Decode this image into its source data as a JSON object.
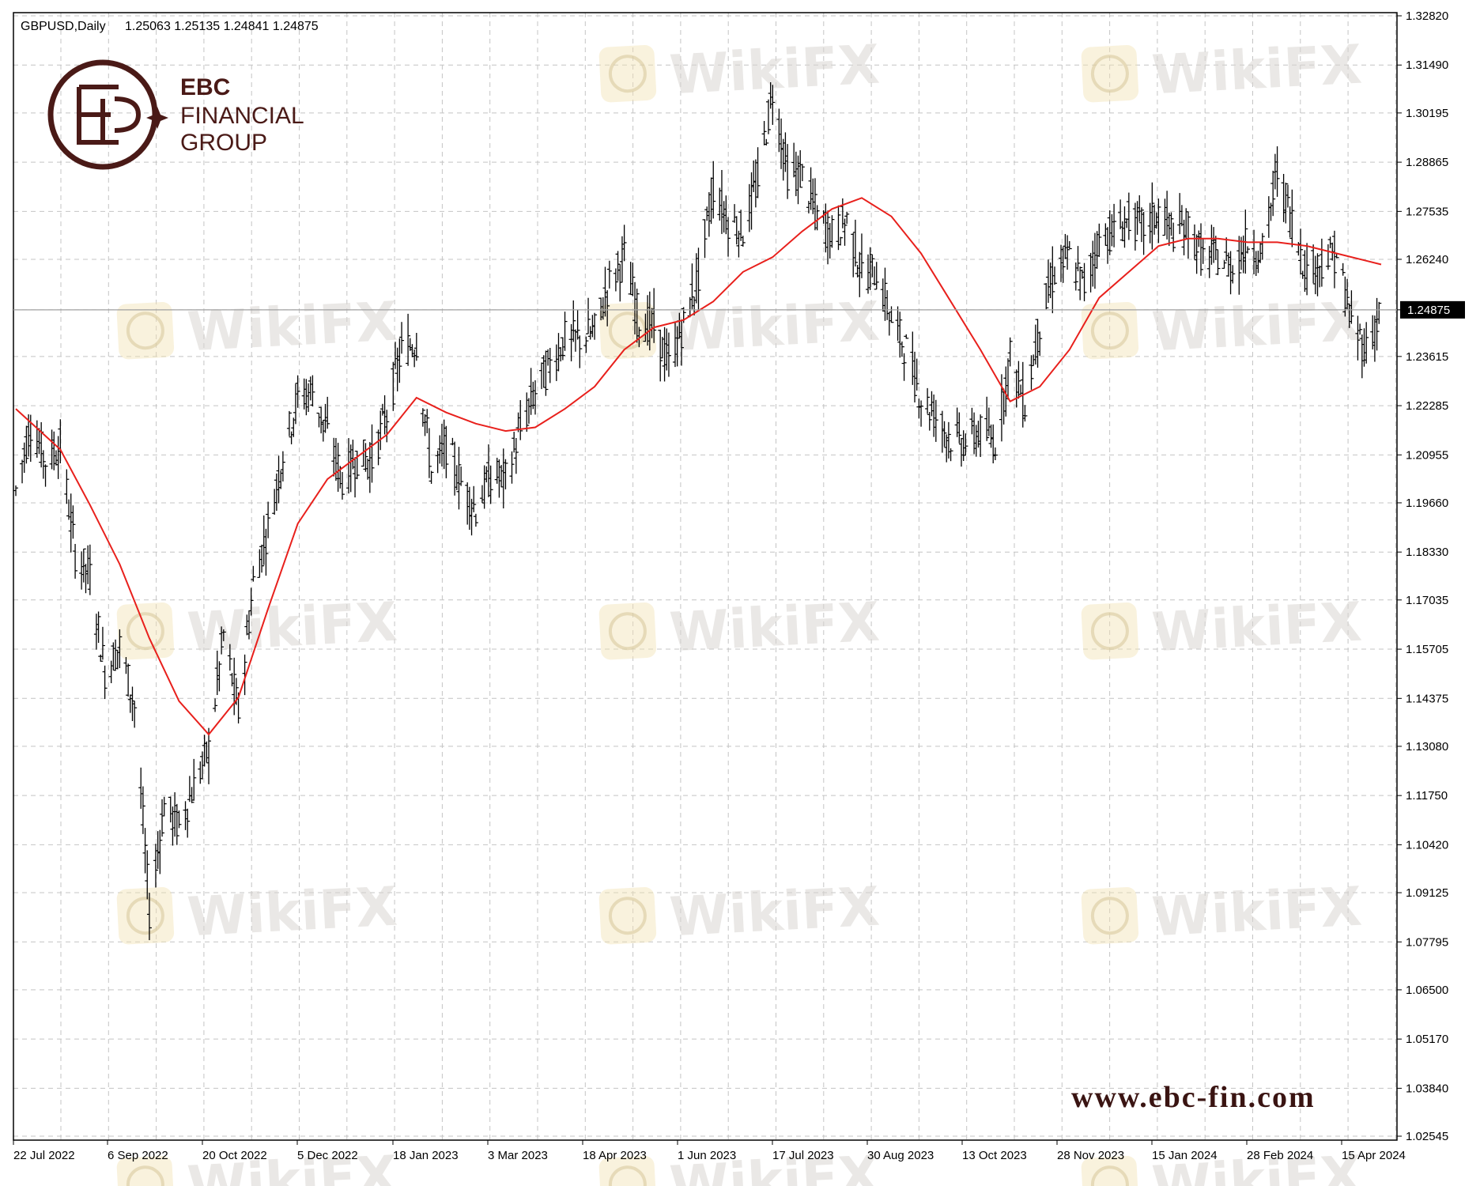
{
  "header": {
    "symbol_timeframe": "GBPUSD,Daily",
    "ohlc": "1.25063 1.25135 1.24841 1.24875"
  },
  "brand": {
    "line1": "EBC",
    "line2": "FINANCIAL",
    "line3": "GROUP",
    "website": "www.ebc-fin.com"
  },
  "watermark": {
    "text": "WikiFX"
  },
  "colors": {
    "background": "#ffffff",
    "bars": "#000000",
    "moving_average": "#e8201c",
    "grid": "#c0c0c0",
    "brand": "#4a1a17",
    "watermark": "#d9d6d2"
  },
  "chart_data": {
    "type": "line",
    "title": "GBPUSD,Daily",
    "symbol": "GBPUSD",
    "timeframe": "Daily",
    "last_price": 1.24875,
    "last_price_label": "1.24875",
    "y_tick_labels": [
      "1.32820",
      "1.31490",
      "1.30195",
      "1.28865",
      "1.27535",
      "1.26240",
      "1.24875",
      "1.23615",
      "1.22285",
      "1.20955",
      "1.19660",
      "1.18330",
      "1.17035",
      "1.15705",
      "1.14375",
      "1.13080",
      "1.11750",
      "1.10420",
      "1.09125",
      "1.07795",
      "1.06500",
      "1.05170",
      "1.03840",
      "1.02545"
    ],
    "x_tick_labels": [
      "22 Jul 2022",
      "6 Sep 2022",
      "20 Oct 2022",
      "5 Dec 2022",
      "18 Jan 2023",
      "3 Mar 2023",
      "18 Apr 2023",
      "1 Jun 2023",
      "17 Jul 2023",
      "30 Aug 2023",
      "13 Oct 2023",
      "28 Nov 2023",
      "15 Jan 2024",
      "28 Feb 2024",
      "15 Apr 2024"
    ],
    "ylim": [
      1.02545,
      1.3282
    ],
    "grid": true,
    "series": [
      {
        "kind": "ohlc-bars",
        "closes": [
          [
            "2022-07-22",
            1.2
          ],
          [
            "2022-07-29",
            1.218
          ],
          [
            "2022-08-05",
            1.208
          ],
          [
            "2022-08-12",
            1.212
          ],
          [
            "2022-08-19",
            1.183
          ],
          [
            "2022-08-26",
            1.177
          ],
          [
            "2022-09-02",
            1.151
          ],
          [
            "2022-09-09",
            1.158
          ],
          [
            "2022-09-16",
            1.142
          ],
          [
            "2022-09-23",
            1.086
          ],
          [
            "2022-09-30",
            1.115
          ],
          [
            "2022-10-07",
            1.109
          ],
          [
            "2022-10-14",
            1.12
          ],
          [
            "2022-10-21",
            1.13
          ],
          [
            "2022-10-28",
            1.161
          ],
          [
            "2022-11-04",
            1.14
          ],
          [
            "2022-11-11",
            1.175
          ],
          [
            "2022-11-18",
            1.19
          ],
          [
            "2022-11-25",
            1.21
          ],
          [
            "2022-12-02",
            1.225
          ],
          [
            "2022-12-09",
            1.227
          ],
          [
            "2022-12-16",
            1.215
          ],
          [
            "2022-12-23",
            1.203
          ],
          [
            "2022-12-30",
            1.209
          ],
          [
            "2023-01-06",
            1.208
          ],
          [
            "2023-01-13",
            1.221
          ],
          [
            "2023-01-20",
            1.238
          ],
          [
            "2023-01-27",
            1.24
          ],
          [
            "2023-02-03",
            1.205
          ],
          [
            "2023-02-10",
            1.212
          ],
          [
            "2023-02-17",
            1.202
          ],
          [
            "2023-02-24",
            1.195
          ],
          [
            "2023-03-03",
            1.204
          ],
          [
            "2023-03-10",
            1.203
          ],
          [
            "2023-03-17",
            1.216
          ],
          [
            "2023-03-24",
            1.227
          ],
          [
            "2023-03-31",
            1.234
          ],
          [
            "2023-04-07",
            1.241
          ],
          [
            "2023-04-14",
            1.241
          ],
          [
            "2023-04-21",
            1.243
          ],
          [
            "2023-04-28",
            1.256
          ],
          [
            "2023-05-05",
            1.263
          ],
          [
            "2023-05-12",
            1.246
          ],
          [
            "2023-05-19",
            1.244
          ],
          [
            "2023-05-26",
            1.234
          ],
          [
            "2023-06-02",
            1.245
          ],
          [
            "2023-06-09",
            1.258
          ],
          [
            "2023-06-16",
            1.282
          ],
          [
            "2023-06-23",
            1.273
          ],
          [
            "2023-06-30",
            1.27
          ],
          [
            "2023-07-07",
            1.284
          ],
          [
            "2023-07-14",
            1.308
          ],
          [
            "2023-07-21",
            1.286
          ],
          [
            "2023-07-28",
            1.285
          ],
          [
            "2023-08-04",
            1.274
          ],
          [
            "2023-08-11",
            1.269
          ],
          [
            "2023-08-18",
            1.273
          ],
          [
            "2023-08-25",
            1.259
          ],
          [
            "2023-09-01",
            1.259
          ],
          [
            "2023-09-08",
            1.246
          ],
          [
            "2023-09-15",
            1.238
          ],
          [
            "2023-09-22",
            1.225
          ],
          [
            "2023-09-29",
            1.22
          ],
          [
            "2023-10-06",
            1.214
          ],
          [
            "2023-10-13",
            1.213
          ],
          [
            "2023-10-20",
            1.216
          ],
          [
            "2023-10-27",
            1.213
          ],
          [
            "2023-11-03",
            1.236
          ],
          [
            "2023-11-10",
            1.223
          ],
          [
            "2023-11-17",
            1.245
          ],
          [
            "2023-11-24",
            1.259
          ],
          [
            "2023-12-01",
            1.263
          ],
          [
            "2023-12-08",
            1.255
          ],
          [
            "2023-12-15",
            1.268
          ],
          [
            "2023-12-22",
            1.27
          ],
          [
            "2023-12-29",
            1.273
          ],
          [
            "2024-01-05",
            1.271
          ],
          [
            "2024-01-12",
            1.275
          ],
          [
            "2024-01-19",
            1.27
          ],
          [
            "2024-01-26",
            1.271
          ],
          [
            "2024-02-02",
            1.263
          ],
          [
            "2024-02-09",
            1.263
          ],
          [
            "2024-02-16",
            1.26
          ],
          [
            "2024-02-23",
            1.267
          ],
          [
            "2024-03-01",
            1.264
          ],
          [
            "2024-03-08",
            1.286
          ],
          [
            "2024-03-15",
            1.273
          ],
          [
            "2024-03-22",
            1.259
          ],
          [
            "2024-03-29",
            1.262
          ],
          [
            "2024-04-05",
            1.264
          ],
          [
            "2024-04-12",
            1.245
          ],
          [
            "2024-04-19",
            1.238
          ],
          [
            "2024-04-26",
            1.249
          ]
        ]
      },
      {
        "kind": "moving-average",
        "points": [
          [
            "2022-07-22",
            1.222
          ],
          [
            "2022-08-12",
            1.211
          ],
          [
            "2022-08-26",
            1.196
          ],
          [
            "2022-09-09",
            1.18
          ],
          [
            "2022-09-23",
            1.16
          ],
          [
            "2022-10-07",
            1.143
          ],
          [
            "2022-10-21",
            1.134
          ],
          [
            "2022-11-04",
            1.144
          ],
          [
            "2022-11-18",
            1.168
          ],
          [
            "2022-12-02",
            1.191
          ],
          [
            "2022-12-16",
            1.203
          ],
          [
            "2022-12-30",
            1.209
          ],
          [
            "2023-01-13",
            1.215
          ],
          [
            "2023-01-27",
            1.225
          ],
          [
            "2023-02-10",
            1.221
          ],
          [
            "2023-02-24",
            1.218
          ],
          [
            "2023-03-10",
            1.216
          ],
          [
            "2023-03-24",
            1.217
          ],
          [
            "2023-04-07",
            1.222
          ],
          [
            "2023-04-21",
            1.228
          ],
          [
            "2023-05-05",
            1.238
          ],
          [
            "2023-05-19",
            1.244
          ],
          [
            "2023-06-02",
            1.246
          ],
          [
            "2023-06-16",
            1.251
          ],
          [
            "2023-06-30",
            1.259
          ],
          [
            "2023-07-14",
            1.263
          ],
          [
            "2023-07-28",
            1.27
          ],
          [
            "2023-08-11",
            1.276
          ],
          [
            "2023-08-25",
            1.279
          ],
          [
            "2023-09-08",
            1.274
          ],
          [
            "2023-09-22",
            1.264
          ],
          [
            "2023-10-06",
            1.251
          ],
          [
            "2023-10-20",
            1.238
          ],
          [
            "2023-11-03",
            1.224
          ],
          [
            "2023-11-17",
            1.228
          ],
          [
            "2023-12-01",
            1.238
          ],
          [
            "2023-12-15",
            1.252
          ],
          [
            "2023-12-29",
            1.259
          ],
          [
            "2024-01-12",
            1.266
          ],
          [
            "2024-01-26",
            1.268
          ],
          [
            "2024-02-09",
            1.268
          ],
          [
            "2024-02-23",
            1.267
          ],
          [
            "2024-03-08",
            1.267
          ],
          [
            "2024-03-22",
            1.266
          ],
          [
            "2024-04-05",
            1.264
          ],
          [
            "2024-04-19",
            1.262
          ],
          [
            "2024-04-26",
            1.261
          ]
        ]
      }
    ]
  }
}
